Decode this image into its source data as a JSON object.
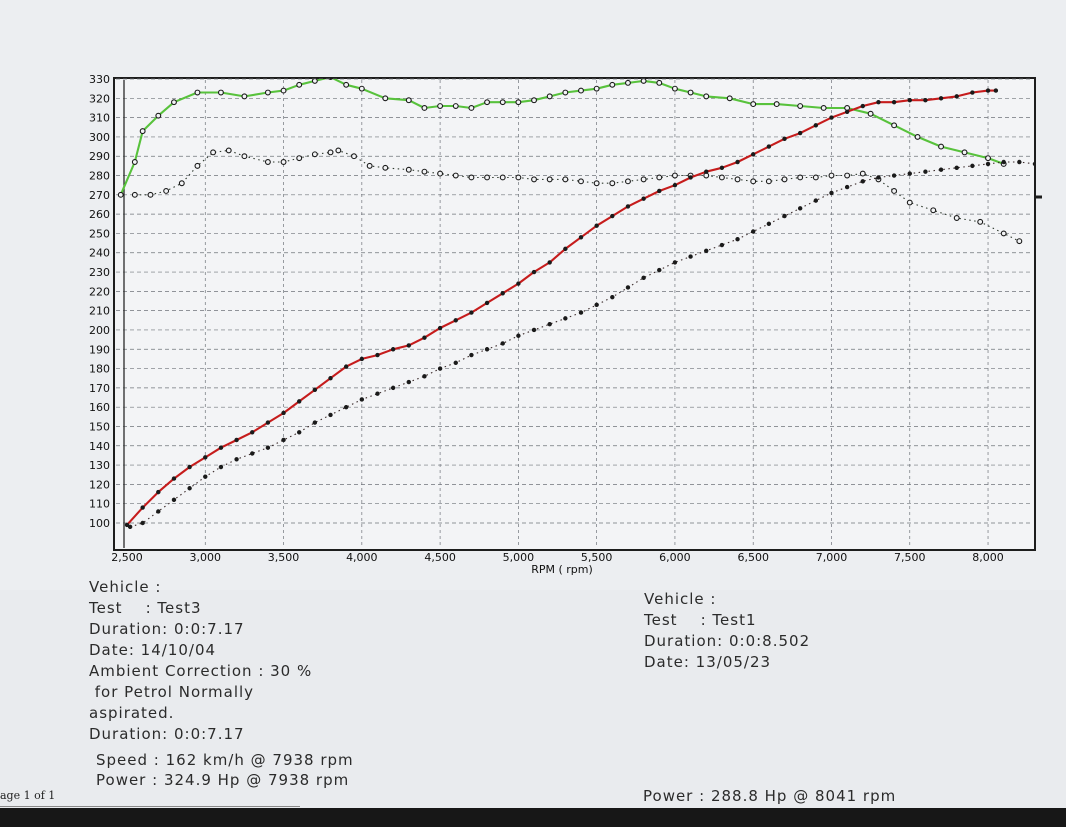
{
  "chart_data": {
    "type": "line",
    "xlabel": "RPM ( rpm)",
    "ylabel": "",
    "xlim": [
      2500,
      8300
    ],
    "ylim": [
      100,
      330
    ],
    "x_ticks": [
      "2,500",
      "3,000",
      "3,500",
      "4,000",
      "4,500",
      "5,000",
      "5,500",
      "6,000",
      "6,500",
      "7,000",
      "7,500",
      "8,000"
    ],
    "x_tick_values": [
      2500,
      3000,
      3500,
      4000,
      4500,
      5000,
      5500,
      6000,
      6500,
      7000,
      7500,
      8000
    ],
    "y_ticks": [
      "100",
      "110",
      "120",
      "130",
      "140",
      "150",
      "160",
      "170",
      "180",
      "190",
      "200",
      "210",
      "220",
      "230",
      "240",
      "250",
      "260",
      "270",
      "280",
      "290",
      "300",
      "310",
      "320",
      "330"
    ],
    "y_tick_values": [
      100,
      110,
      120,
      130,
      140,
      150,
      160,
      170,
      180,
      190,
      200,
      210,
      220,
      230,
      240,
      250,
      260,
      270,
      280,
      290,
      300,
      310,
      320,
      330
    ],
    "grid": true,
    "series": [
      {
        "color": "#58c23c",
        "style": "solid",
        "markers": "hollow",
        "x": [
          2460,
          2550,
          2600,
          2700,
          2800,
          2950,
          3100,
          3250,
          3400,
          3500,
          3600,
          3700,
          3800,
          3900,
          4000,
          4150,
          4300,
          4400,
          4500,
          4600,
          4700,
          4800,
          4900,
          5000,
          5100,
          5200,
          5300,
          5400,
          5500,
          5600,
          5700,
          5800,
          5900,
          6000,
          6100,
          6200,
          6350,
          6500,
          6650,
          6800,
          6950,
          7100,
          7250,
          7400,
          7550,
          7700,
          7850,
          8000,
          8100
        ],
        "y": [
          270,
          287,
          303,
          311,
          318,
          323,
          323,
          321,
          323,
          324,
          327,
          329,
          331,
          327,
          325,
          320,
          319,
          315,
          316,
          316,
          315,
          318,
          318,
          318,
          319,
          321,
          323,
          324,
          325,
          327,
          328,
          329,
          328,
          325,
          323,
          321,
          320,
          317,
          317,
          316,
          315,
          315,
          312,
          306,
          300,
          295,
          292,
          289,
          286
        ]
      },
      {
        "color": "#2f3a2f",
        "style": "dotted",
        "markers": "hollow",
        "x": [
          2550,
          2650,
          2750,
          2850,
          2950,
          3050,
          3150,
          3250,
          3400,
          3500,
          3600,
          3700,
          3800,
          3850,
          3950,
          4050,
          4150,
          4300,
          4400,
          4500,
          4600,
          4700,
          4800,
          4900,
          5000,
          5100,
          5200,
          5300,
          5400,
          5500,
          5600,
          5700,
          5800,
          5900,
          6000,
          6100,
          6200,
          6300,
          6400,
          6500,
          6600,
          6700,
          6800,
          6900,
          7000,
          7100,
          7200,
          7300,
          7400,
          7500,
          7650,
          7800,
          7950,
          8100,
          8200
        ],
        "y": [
          270,
          270,
          272,
          276,
          285,
          292,
          293,
          290,
          287,
          287,
          289,
          291,
          292,
          293,
          290,
          285,
          284,
          283,
          282,
          281,
          280,
          279,
          279,
          279,
          279,
          278,
          278,
          278,
          277,
          276,
          276,
          277,
          278,
          279,
          280,
          280,
          280,
          279,
          278,
          277,
          277,
          278,
          279,
          279,
          280,
          280,
          281,
          278,
          272,
          266,
          262,
          258,
          256,
          250,
          246
        ]
      },
      {
        "color": "#c61c1c",
        "style": "solid",
        "markers": "filled",
        "x": [
          2500,
          2600,
          2700,
          2800,
          2900,
          3000,
          3100,
          3200,
          3300,
          3400,
          3500,
          3600,
          3700,
          3800,
          3900,
          4000,
          4100,
          4200,
          4300,
          4400,
          4500,
          4600,
          4700,
          4800,
          4900,
          5000,
          5100,
          5200,
          5300,
          5400,
          5500,
          5600,
          5700,
          5800,
          5900,
          6000,
          6100,
          6200,
          6300,
          6400,
          6500,
          6600,
          6700,
          6800,
          6900,
          7000,
          7100,
          7200,
          7300,
          7400,
          7500,
          7600,
          7700,
          7800,
          7900,
          8000,
          8050
        ],
        "y": [
          99,
          108,
          116,
          123,
          129,
          134,
          139,
          143,
          147,
          152,
          157,
          163,
          169,
          175,
          181,
          185,
          187,
          190,
          192,
          196,
          201,
          205,
          209,
          214,
          219,
          224,
          230,
          235,
          242,
          248,
          254,
          259,
          264,
          268,
          272,
          275,
          279,
          282,
          284,
          287,
          291,
          295,
          299,
          302,
          306,
          310,
          313,
          316,
          318,
          318,
          319,
          319,
          320,
          321,
          323,
          324,
          324
        ]
      },
      {
        "color": "#3a2a2a",
        "style": "dotted",
        "markers": "filled",
        "x": [
          2520,
          2600,
          2700,
          2800,
          2900,
          3000,
          3100,
          3200,
          3300,
          3400,
          3500,
          3600,
          3700,
          3800,
          3900,
          4000,
          4100,
          4200,
          4300,
          4400,
          4500,
          4600,
          4700,
          4800,
          4900,
          5000,
          5100,
          5200,
          5300,
          5400,
          5500,
          5600,
          5700,
          5800,
          5900,
          6000,
          6100,
          6200,
          6300,
          6400,
          6500,
          6600,
          6700,
          6800,
          6900,
          7000,
          7100,
          7200,
          7300,
          7400,
          7500,
          7600,
          7700,
          7800,
          7900,
          8000,
          8100,
          8200,
          8300
        ],
        "y": [
          98,
          100,
          106,
          112,
          118,
          124,
          129,
          133,
          136,
          139,
          143,
          147,
          152,
          156,
          160,
          164,
          167,
          170,
          173,
          176,
          180,
          183,
          187,
          190,
          193,
          197,
          200,
          203,
          206,
          209,
          213,
          217,
          222,
          227,
          231,
          235,
          238,
          241,
          244,
          247,
          251,
          255,
          259,
          263,
          267,
          271,
          274,
          277,
          279,
          280,
          281,
          282,
          283,
          284,
          285,
          286,
          287,
          287,
          286
        ]
      }
    ]
  },
  "left_info": {
    "vehicle": "Vehicle :",
    "test": "Test    : Test3",
    "duration": "Duration: 0:0:7.17",
    "date": "Date: 14/10/04",
    "ambient": "Ambient Correction : 30 %",
    "petrol_line1": " for Petrol Normally",
    "petrol_line2": "aspirated.",
    "duration2": "Duration: 0:0:7.17"
  },
  "right_info": {
    "vehicle": "Vehicle :",
    "test": "Test    : Test1",
    "duration": "Duration: 0:0:8.502",
    "date": "Date: 13/05/23"
  },
  "results": {
    "speed": "Speed : 162 km/h @ 7938 rpm",
    "power_left": "Power : 324.9 Hp @ 7938 rpm",
    "power_right": "Power : 288.8 Hp @ 8041 rpm"
  },
  "page_label": "age 1 of 1"
}
